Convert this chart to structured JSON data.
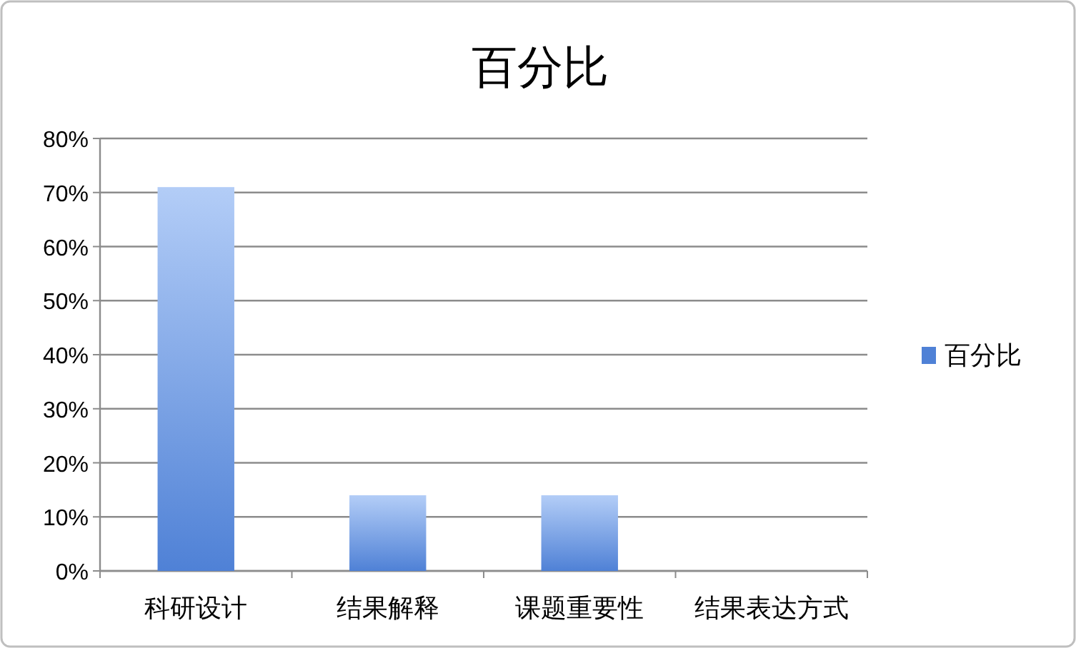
{
  "chart_data": {
    "type": "bar",
    "title": "百分比",
    "categories": [
      "科研设计",
      "结果解释",
      "课题重要性",
      "结果表达方式"
    ],
    "series": [
      {
        "name": "百分比",
        "color": "#4f81d6",
        "values": [
          71,
          14,
          14,
          0
        ]
      }
    ],
    "ylim": [
      0,
      80
    ],
    "yticks": [
      {
        "value": 0,
        "label": "0%"
      },
      {
        "value": 10,
        "label": "10%"
      },
      {
        "value": 20,
        "label": "20%"
      },
      {
        "value": 30,
        "label": "30%"
      },
      {
        "value": 40,
        "label": "40%"
      },
      {
        "value": 50,
        "label": "50%"
      },
      {
        "value": 60,
        "label": "60%"
      },
      {
        "value": 70,
        "label": "70%"
      },
      {
        "value": 80,
        "label": "80%"
      }
    ],
    "grid": "y",
    "legend": "right"
  }
}
